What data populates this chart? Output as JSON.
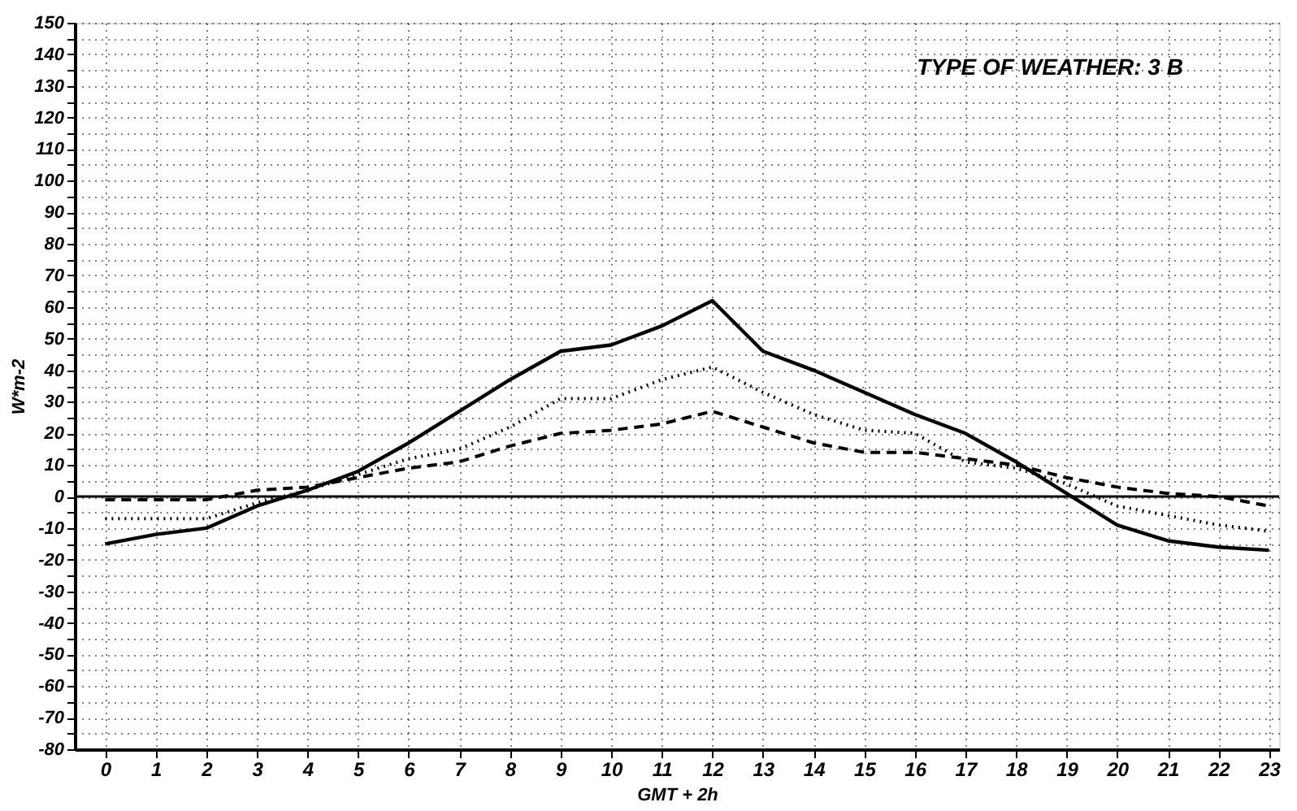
{
  "chart_data": {
    "type": "line",
    "xlabel": "GMT + 2h",
    "ylabel": "W*m-2",
    "annotations": [
      "TYPE OF WEATHER: 3 B"
    ],
    "x": [
      0,
      1,
      2,
      3,
      4,
      5,
      6,
      7,
      8,
      9,
      10,
      11,
      12,
      13,
      14,
      15,
      16,
      17,
      18,
      19,
      20,
      21,
      22,
      23
    ],
    "series": [
      {
        "color": "#000000",
        "line_style": "solid",
        "values": [
          -15,
          -12,
          -10,
          -3,
          2,
          8,
          17,
          27,
          37,
          46,
          48,
          54,
          62,
          46,
          40,
          33,
          26,
          20,
          11,
          1,
          -9,
          -14,
          -16,
          -17
        ]
      },
      {
        "color": "#000000",
        "line_style": "dotted",
        "values": [
          -7,
          -7,
          -7,
          -2,
          2,
          7,
          12,
          15,
          22,
          31,
          31,
          37,
          41,
          33,
          26,
          21,
          20,
          11,
          9,
          4,
          -3,
          -6,
          -9,
          -11
        ]
      },
      {
        "color": "#000000",
        "line_style": "dashed",
        "values": [
          -1,
          -1,
          -1,
          2,
          3,
          6,
          9,
          11,
          16,
          20,
          21,
          23,
          27,
          22,
          17,
          14,
          14,
          12,
          10,
          6,
          3,
          1,
          0,
          -3
        ]
      }
    ],
    "xlim": [
      -0.6,
      23.2
    ],
    "xticks": [
      0,
      1,
      2,
      3,
      4,
      5,
      6,
      7,
      8,
      9,
      10,
      11,
      12,
      13,
      14,
      15,
      16,
      17,
      18,
      19,
      20,
      21,
      22,
      23
    ],
    "ylim": [
      -80,
      150
    ],
    "yticks": [
      -80,
      {
        "value": -75,
        "label": null
      },
      -70,
      {
        "value": -65,
        "label": null
      },
      -60,
      {
        "value": -55,
        "label": null
      },
      -50,
      {
        "value": -45,
        "label": null
      },
      -40,
      {
        "value": -35,
        "label": null
      },
      -30,
      {
        "value": -25,
        "label": null
      },
      -20,
      {
        "value": -15,
        "label": null
      },
      -10,
      {
        "value": -5,
        "label": null
      },
      0,
      {
        "value": 5,
        "label": null
      },
      10,
      {
        "value": 15,
        "label": null
      },
      20,
      {
        "value": 25,
        "label": null
      },
      30,
      {
        "value": 35,
        "label": null
      },
      40,
      {
        "value": 45,
        "label": null
      },
      50,
      {
        "value": 55,
        "label": null
      },
      60,
      {
        "value": 65,
        "label": null
      },
      70,
      {
        "value": 75,
        "label": null
      },
      80,
      {
        "value": 85,
        "label": null
      },
      90,
      {
        "value": 95,
        "label": null
      },
      100,
      {
        "value": 105,
        "label": null
      },
      110,
      {
        "value": 115,
        "label": null
      },
      120,
      {
        "value": 125,
        "label": null
      },
      130,
      {
        "value": 135,
        "label": null
      },
      140,
      {
        "value": 145,
        "label": null
      },
      150
    ],
    "grid": true,
    "marker": "none",
    "ref_lines": [
      {
        "axis": "y",
        "value": 0,
        "color": "#000000",
        "line_style": "solid"
      }
    ]
  }
}
